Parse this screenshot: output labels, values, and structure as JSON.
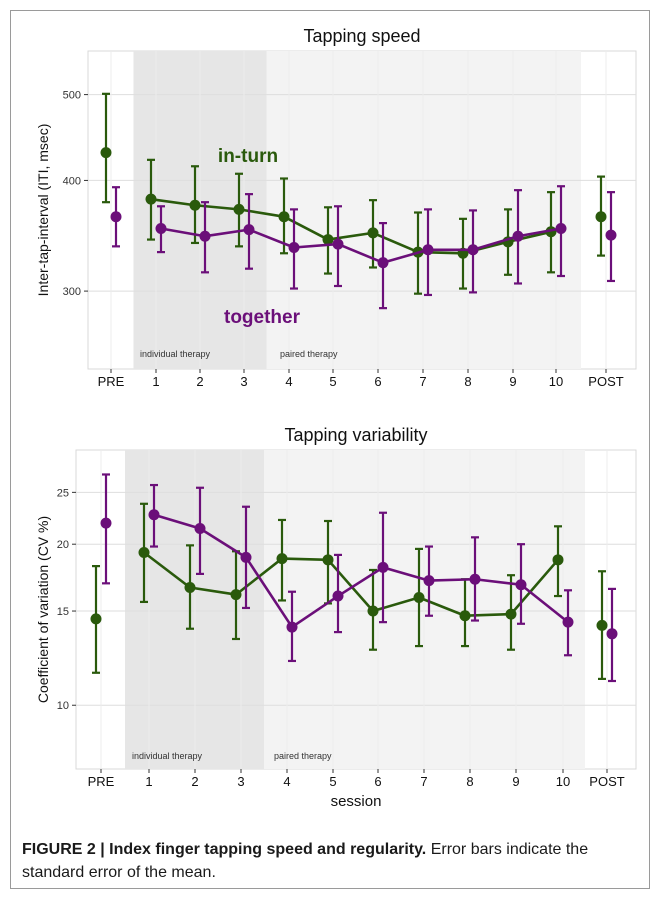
{
  "figure": {
    "caption_label": "FIGURE 2 | Index finger tapping speed and regularity.",
    "caption_text": " Error bars indicate the standard error of the mean."
  },
  "colors": {
    "in_turn": "#2a5a0c",
    "together": "#6b0f79",
    "individual_band": "#e6e6e6",
    "paired_band": "#f3f3f3"
  },
  "chart_data": [
    {
      "type": "line",
      "title": "Tapping speed",
      "xlabel": "",
      "ylabel": "Inter-tap-interval (ITI, msec)",
      "categories": [
        "PRE",
        "1",
        "2",
        "3",
        "4",
        "5",
        "6",
        "7",
        "8",
        "9",
        "10",
        "POST"
      ],
      "y_scale": "log",
      "ylim": [
        245,
        560
      ],
      "yticks": [
        300,
        400,
        500
      ],
      "grid": true,
      "regions": [
        {
          "label": "individual therapy",
          "from": "1",
          "to": "3"
        },
        {
          "label": "paired therapy",
          "from": "4",
          "to": "10"
        }
      ],
      "annotations": [
        {
          "text": "in-turn",
          "series": "in-turn"
        },
        {
          "text": "together",
          "series": "together"
        }
      ],
      "series": [
        {
          "name": "in-turn",
          "connected_from": "1",
          "connected_to": "10",
          "values": [
            430,
            381,
            375,
            371,
            364,
            343,
            349,
            332,
            331,
            341,
            350,
            364
          ],
          "err_low": [
            378,
            343,
            340,
            337,
            331,
            314,
            319,
            298,
            302,
            313,
            315,
            329
          ],
          "err_high": [
            501,
            422,
            415,
            407,
            402,
            373,
            380,
            368,
            362,
            371,
            388,
            404
          ]
        },
        {
          "name": "together",
          "connected_from": "1",
          "connected_to": "10",
          "values": [
            364,
            353,
            346,
            352,
            336,
            339,
            323,
            334,
            334,
            346,
            353,
            347
          ],
          "err_low": [
            337,
            332,
            315,
            318,
            302,
            304,
            287,
            297,
            299,
            306,
            312,
            308
          ],
          "err_high": [
            393,
            374,
            378,
            386,
            371,
            374,
            358,
            371,
            370,
            390,
            394,
            388
          ]
        }
      ]
    },
    {
      "type": "line",
      "title": "Tapping variability",
      "xlabel": "session",
      "ylabel": "Coefficient of variation (CV %)",
      "categories": [
        "PRE",
        "1",
        "2",
        "3",
        "4",
        "5",
        "6",
        "7",
        "8",
        "9",
        "10",
        "POST"
      ],
      "y_scale": "log",
      "ylim": [
        7.6,
        30
      ],
      "yticks": [
        10,
        15,
        20,
        25
      ],
      "grid": true,
      "regions": [
        {
          "label": "individual therapy",
          "from": "1",
          "to": "3"
        },
        {
          "label": "paired therapy",
          "from": "4",
          "to": "10"
        }
      ],
      "series": [
        {
          "name": "in-turn",
          "connected_from": "1",
          "connected_to": "10",
          "values": [
            14.5,
            19.3,
            16.6,
            16.1,
            18.8,
            18.7,
            15.0,
            15.9,
            14.7,
            14.8,
            18.7,
            14.1
          ],
          "err_low": [
            11.5,
            15.6,
            13.9,
            13.3,
            15.7,
            15.5,
            12.7,
            12.9,
            12.9,
            12.7,
            16.0,
            11.2
          ],
          "err_high": [
            18.2,
            23.8,
            19.9,
            19.4,
            22.2,
            22.1,
            17.9,
            19.6,
            17.2,
            17.5,
            21.6,
            17.8
          ]
        },
        {
          "name": "together",
          "connected_from": "1",
          "connected_to": "10",
          "values": [
            21.9,
            22.7,
            21.4,
            18.9,
            14.0,
            16.0,
            18.1,
            17.1,
            17.2,
            16.8,
            14.3,
            13.6
          ],
          "err_low": [
            16.9,
            19.8,
            17.6,
            15.2,
            12.1,
            13.7,
            14.3,
            14.7,
            14.4,
            14.2,
            12.4,
            11.1
          ],
          "err_high": [
            27.0,
            25.8,
            25.5,
            23.5,
            16.3,
            19.1,
            22.9,
            19.8,
            20.6,
            20.0,
            16.4,
            16.5
          ]
        }
      ]
    }
  ]
}
